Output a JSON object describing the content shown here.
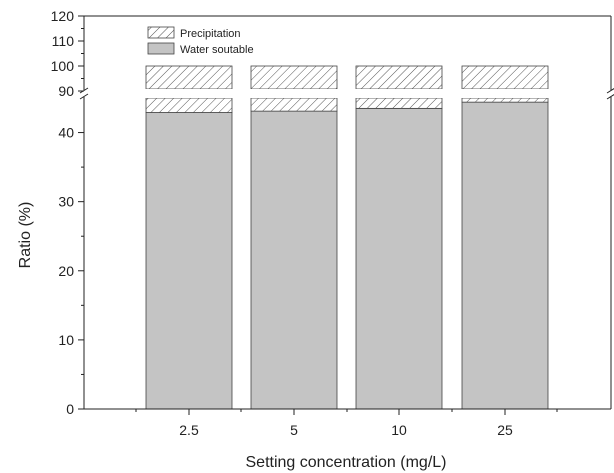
{
  "chart_data": {
    "type": "bar",
    "stacked": true,
    "title": "",
    "xlabel": "Setting concentration (mg/L)",
    "ylabel": "Ratio (%)",
    "categories": [
      "2.5",
      "5",
      "10",
      "25"
    ],
    "series": [
      {
        "name": "Water soutable",
        "values": [
          42.9,
          43.1,
          43.5,
          44.4
        ],
        "color": "#c4c4c4",
        "pattern": "solid"
      },
      {
        "name": "Precipitation",
        "values": [
          57.1,
          56.9,
          56.5,
          55.6
        ],
        "color": "#ffffff",
        "pattern": "diagonal-hatch"
      }
    ],
    "ylim": [
      0,
      120
    ],
    "y_axis_break": [
      45,
      90
    ],
    "yticks_lower": [
      "0",
      "10",
      "20",
      "30",
      "40"
    ],
    "yticks_upper": [
      "90",
      "100",
      "110",
      "120"
    ],
    "legend_position": "top-left",
    "grid": false
  }
}
